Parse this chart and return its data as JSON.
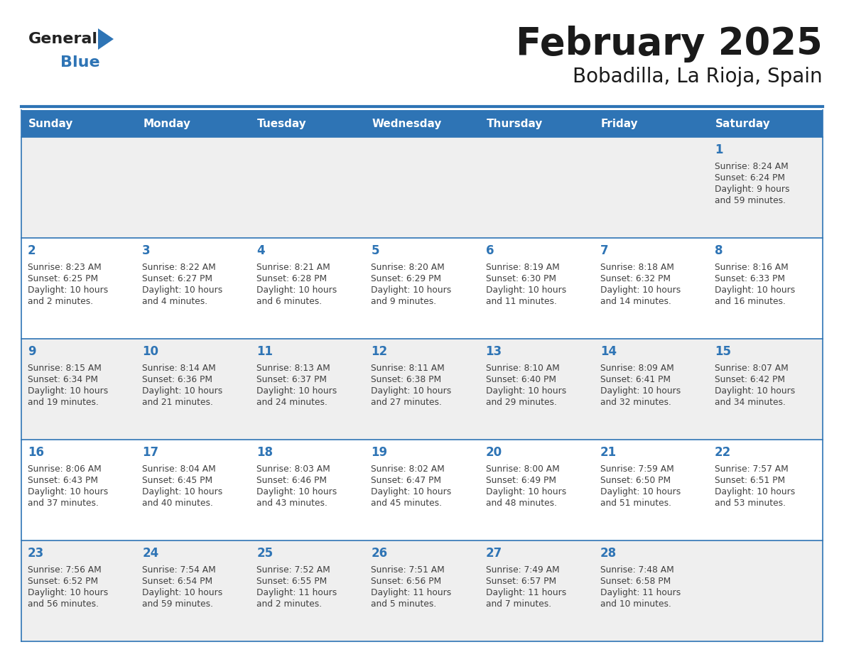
{
  "title": "February 2025",
  "subtitle": "Bobadilla, La Rioja, Spain",
  "days_of_week": [
    "Sunday",
    "Monday",
    "Tuesday",
    "Wednesday",
    "Thursday",
    "Friday",
    "Saturday"
  ],
  "header_bg": "#2E74B5",
  "header_text": "#FFFFFF",
  "row_bg_1": "#EFEFEF",
  "row_bg_2": "#FFFFFF",
  "cell_border": "#2E74B5",
  "day_number_color": "#2E74B5",
  "info_text_color": "#404040",
  "title_color": "#1A1A1A",
  "logo_general_color": "#222222",
  "logo_blue_color": "#2E74B5",
  "calendar_data": [
    [
      null,
      null,
      null,
      null,
      null,
      null,
      {
        "day": "1",
        "sunrise": "8:24 AM",
        "sunset": "6:24 PM",
        "daylight": "9 hours and 59 minutes."
      }
    ],
    [
      {
        "day": "2",
        "sunrise": "8:23 AM",
        "sunset": "6:25 PM",
        "daylight": "10 hours and 2 minutes."
      },
      {
        "day": "3",
        "sunrise": "8:22 AM",
        "sunset": "6:27 PM",
        "daylight": "10 hours and 4 minutes."
      },
      {
        "day": "4",
        "sunrise": "8:21 AM",
        "sunset": "6:28 PM",
        "daylight": "10 hours and 6 minutes."
      },
      {
        "day": "5",
        "sunrise": "8:20 AM",
        "sunset": "6:29 PM",
        "daylight": "10 hours and 9 minutes."
      },
      {
        "day": "6",
        "sunrise": "8:19 AM",
        "sunset": "6:30 PM",
        "daylight": "10 hours and 11 minutes."
      },
      {
        "day": "7",
        "sunrise": "8:18 AM",
        "sunset": "6:32 PM",
        "daylight": "10 hours and 14 minutes."
      },
      {
        "day": "8",
        "sunrise": "8:16 AM",
        "sunset": "6:33 PM",
        "daylight": "10 hours and 16 minutes."
      }
    ],
    [
      {
        "day": "9",
        "sunrise": "8:15 AM",
        "sunset": "6:34 PM",
        "daylight": "10 hours and 19 minutes."
      },
      {
        "day": "10",
        "sunrise": "8:14 AM",
        "sunset": "6:36 PM",
        "daylight": "10 hours and 21 minutes."
      },
      {
        "day": "11",
        "sunrise": "8:13 AM",
        "sunset": "6:37 PM",
        "daylight": "10 hours and 24 minutes."
      },
      {
        "day": "12",
        "sunrise": "8:11 AM",
        "sunset": "6:38 PM",
        "daylight": "10 hours and 27 minutes."
      },
      {
        "day": "13",
        "sunrise": "8:10 AM",
        "sunset": "6:40 PM",
        "daylight": "10 hours and 29 minutes."
      },
      {
        "day": "14",
        "sunrise": "8:09 AM",
        "sunset": "6:41 PM",
        "daylight": "10 hours and 32 minutes."
      },
      {
        "day": "15",
        "sunrise": "8:07 AM",
        "sunset": "6:42 PM",
        "daylight": "10 hours and 34 minutes."
      }
    ],
    [
      {
        "day": "16",
        "sunrise": "8:06 AM",
        "sunset": "6:43 PM",
        "daylight": "10 hours and 37 minutes."
      },
      {
        "day": "17",
        "sunrise": "8:04 AM",
        "sunset": "6:45 PM",
        "daylight": "10 hours and 40 minutes."
      },
      {
        "day": "18",
        "sunrise": "8:03 AM",
        "sunset": "6:46 PM",
        "daylight": "10 hours and 43 minutes."
      },
      {
        "day": "19",
        "sunrise": "8:02 AM",
        "sunset": "6:47 PM",
        "daylight": "10 hours and 45 minutes."
      },
      {
        "day": "20",
        "sunrise": "8:00 AM",
        "sunset": "6:49 PM",
        "daylight": "10 hours and 48 minutes."
      },
      {
        "day": "21",
        "sunrise": "7:59 AM",
        "sunset": "6:50 PM",
        "daylight": "10 hours and 51 minutes."
      },
      {
        "day": "22",
        "sunrise": "7:57 AM",
        "sunset": "6:51 PM",
        "daylight": "10 hours and 53 minutes."
      }
    ],
    [
      {
        "day": "23",
        "sunrise": "7:56 AM",
        "sunset": "6:52 PM",
        "daylight": "10 hours and 56 minutes."
      },
      {
        "day": "24",
        "sunrise": "7:54 AM",
        "sunset": "6:54 PM",
        "daylight": "10 hours and 59 minutes."
      },
      {
        "day": "25",
        "sunrise": "7:52 AM",
        "sunset": "6:55 PM",
        "daylight": "11 hours and 2 minutes."
      },
      {
        "day": "26",
        "sunrise": "7:51 AM",
        "sunset": "6:56 PM",
        "daylight": "11 hours and 5 minutes."
      },
      {
        "day": "27",
        "sunrise": "7:49 AM",
        "sunset": "6:57 PM",
        "daylight": "11 hours and 7 minutes."
      },
      {
        "day": "28",
        "sunrise": "7:48 AM",
        "sunset": "6:58 PM",
        "daylight": "11 hours and 10 minutes."
      },
      null
    ]
  ]
}
